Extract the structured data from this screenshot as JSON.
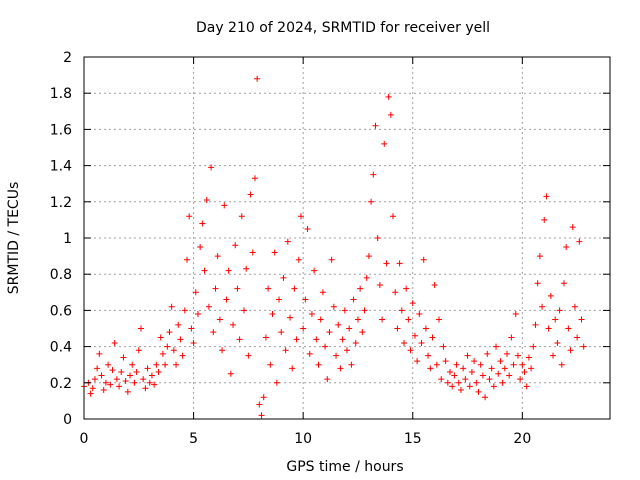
{
  "chart_data": {
    "type": "scatter",
    "title": "Day 210 of 2024, SRMTID for receiver yell",
    "xlabel": "GPS time / hours",
    "ylabel": "SRMTID / TECUs",
    "xlim": [
      0,
      24
    ],
    "ylim": [
      0,
      2
    ],
    "xticks": [
      0,
      5,
      10,
      15,
      20
    ],
    "xtick_labels": [
      "0",
      "5",
      "10",
      "15",
      "20"
    ],
    "yticks": [
      0,
      0.2,
      0.4,
      0.6,
      0.8,
      1,
      1.2,
      1.4,
      1.6,
      1.8,
      2
    ],
    "ytick_labels": [
      "0",
      "0.2",
      "0.4",
      "0.6",
      "0.8",
      "1",
      "1.2",
      "1.4",
      "1.6",
      "1.8",
      "2"
    ],
    "grid": true,
    "marker": "plus",
    "color": "#ff0000",
    "series": [
      {
        "name": "SRMTID",
        "points": [
          [
            0.0,
            0.18
          ],
          [
            0.2,
            0.2
          ],
          [
            0.3,
            0.14
          ],
          [
            0.4,
            0.17
          ],
          [
            0.5,
            0.22
          ],
          [
            0.6,
            0.28
          ],
          [
            0.7,
            0.36
          ],
          [
            0.8,
            0.24
          ],
          [
            0.9,
            0.16
          ],
          [
            1.0,
            0.2
          ],
          [
            1.1,
            0.3
          ],
          [
            1.2,
            0.19
          ],
          [
            1.3,
            0.27
          ],
          [
            1.4,
            0.42
          ],
          [
            1.5,
            0.22
          ],
          [
            1.6,
            0.18
          ],
          [
            1.7,
            0.26
          ],
          [
            1.8,
            0.34
          ],
          [
            1.9,
            0.21
          ],
          [
            2.0,
            0.15
          ],
          [
            2.1,
            0.24
          ],
          [
            2.2,
            0.3
          ],
          [
            2.3,
            0.2
          ],
          [
            2.4,
            0.26
          ],
          [
            2.5,
            0.38
          ],
          [
            2.6,
            0.5
          ],
          [
            2.7,
            0.22
          ],
          [
            2.8,
            0.17
          ],
          [
            2.9,
            0.28
          ],
          [
            3.0,
            0.2
          ],
          [
            3.1,
            0.24
          ],
          [
            3.2,
            0.19
          ],
          [
            3.3,
            0.3
          ],
          [
            3.4,
            0.26
          ],
          [
            3.5,
            0.45
          ],
          [
            3.6,
            0.36
          ],
          [
            3.7,
            0.3
          ],
          [
            3.8,
            0.4
          ],
          [
            3.9,
            0.48
          ],
          [
            4.0,
            0.62
          ],
          [
            4.1,
            0.38
          ],
          [
            4.2,
            0.3
          ],
          [
            4.3,
            0.52
          ],
          [
            4.4,
            0.44
          ],
          [
            4.5,
            0.35
          ],
          [
            4.6,
            0.6
          ],
          [
            4.7,
            0.88
          ],
          [
            4.8,
            1.12
          ],
          [
            4.9,
            0.5
          ],
          [
            5.0,
            0.42
          ],
          [
            5.1,
            0.7
          ],
          [
            5.2,
            0.58
          ],
          [
            5.3,
            0.95
          ],
          [
            5.4,
            1.08
          ],
          [
            5.5,
            0.82
          ],
          [
            5.6,
            1.21
          ],
          [
            5.7,
            0.62
          ],
          [
            5.8,
            1.39
          ],
          [
            5.9,
            0.48
          ],
          [
            6.0,
            0.72
          ],
          [
            6.1,
            0.9
          ],
          [
            6.2,
            0.55
          ],
          [
            6.3,
            0.38
          ],
          [
            6.4,
            1.18
          ],
          [
            6.5,
            0.66
          ],
          [
            6.6,
            0.82
          ],
          [
            6.7,
            0.25
          ],
          [
            6.8,
            0.52
          ],
          [
            6.9,
            0.96
          ],
          [
            7.0,
            0.72
          ],
          [
            7.1,
            0.44
          ],
          [
            7.2,
            1.12
          ],
          [
            7.3,
            0.6
          ],
          [
            7.4,
            0.83
          ],
          [
            7.5,
            0.35
          ],
          [
            7.6,
            1.24
          ],
          [
            7.7,
            0.92
          ],
          [
            7.8,
            1.33
          ],
          [
            7.9,
            1.88
          ],
          [
            8.0,
            0.08
          ],
          [
            8.1,
            0.02
          ],
          [
            8.2,
            0.12
          ],
          [
            8.3,
            0.45
          ],
          [
            8.4,
            0.72
          ],
          [
            8.5,
            0.3
          ],
          [
            8.6,
            0.58
          ],
          [
            8.7,
            0.92
          ],
          [
            8.8,
            0.2
          ],
          [
            8.9,
            0.66
          ],
          [
            9.0,
            0.48
          ],
          [
            9.1,
            0.78
          ],
          [
            9.2,
            0.38
          ],
          [
            9.3,
            0.98
          ],
          [
            9.4,
            0.56
          ],
          [
            9.5,
            0.28
          ],
          [
            9.6,
            0.72
          ],
          [
            9.7,
            0.44
          ],
          [
            9.8,
            0.88
          ],
          [
            9.9,
            1.12
          ],
          [
            10.0,
            0.5
          ],
          [
            10.1,
            0.66
          ],
          [
            10.2,
            1.05
          ],
          [
            10.3,
            0.36
          ],
          [
            10.4,
            0.58
          ],
          [
            10.5,
            0.82
          ],
          [
            10.6,
            0.44
          ],
          [
            10.7,
            0.3
          ],
          [
            10.8,
            0.55
          ],
          [
            10.9,
            0.7
          ],
          [
            11.0,
            0.4
          ],
          [
            11.1,
            0.22
          ],
          [
            11.2,
            0.48
          ],
          [
            11.3,
            0.88
          ],
          [
            11.4,
            0.62
          ],
          [
            11.5,
            0.35
          ],
          [
            11.6,
            0.52
          ],
          [
            11.7,
            0.28
          ],
          [
            11.8,
            0.44
          ],
          [
            11.9,
            0.6
          ],
          [
            12.0,
            0.38
          ],
          [
            12.1,
            0.5
          ],
          [
            12.2,
            0.3
          ],
          [
            12.3,
            0.66
          ],
          [
            12.4,
            0.42
          ],
          [
            12.5,
            0.55
          ],
          [
            12.6,
            0.72
          ],
          [
            12.7,
            0.48
          ],
          [
            12.8,
            0.6
          ],
          [
            12.9,
            0.78
          ],
          [
            13.0,
            0.9
          ],
          [
            13.1,
            1.2
          ],
          [
            13.2,
            1.35
          ],
          [
            13.3,
            1.62
          ],
          [
            13.4,
            1.0
          ],
          [
            13.5,
            0.74
          ],
          [
            13.6,
            0.55
          ],
          [
            13.7,
            1.52
          ],
          [
            13.8,
            0.86
          ],
          [
            13.9,
            1.78
          ],
          [
            14.0,
            1.68
          ],
          [
            14.1,
            1.12
          ],
          [
            14.2,
            0.7
          ],
          [
            14.3,
            0.5
          ],
          [
            14.4,
            0.86
          ],
          [
            14.5,
            0.6
          ],
          [
            14.6,
            0.42
          ],
          [
            14.7,
            0.72
          ],
          [
            14.8,
            0.55
          ],
          [
            14.9,
            0.38
          ],
          [
            15.0,
            0.64
          ],
          [
            15.1,
            0.46
          ],
          [
            15.2,
            0.32
          ],
          [
            15.3,
            0.58
          ],
          [
            15.4,
            0.42
          ],
          [
            15.5,
            0.88
          ],
          [
            15.6,
            0.5
          ],
          [
            15.7,
            0.35
          ],
          [
            15.8,
            0.28
          ],
          [
            15.9,
            0.45
          ],
          [
            16.0,
            0.74
          ],
          [
            16.1,
            0.3
          ],
          [
            16.2,
            0.55
          ],
          [
            16.3,
            0.22
          ],
          [
            16.4,
            0.4
          ],
          [
            16.5,
            0.32
          ],
          [
            16.6,
            0.2
          ],
          [
            16.7,
            0.26
          ],
          [
            16.8,
            0.18
          ],
          [
            16.9,
            0.24
          ],
          [
            17.0,
            0.3
          ],
          [
            17.1,
            0.2
          ],
          [
            17.2,
            0.16
          ],
          [
            17.3,
            0.28
          ],
          [
            17.4,
            0.22
          ],
          [
            17.5,
            0.35
          ],
          [
            17.6,
            0.18
          ],
          [
            17.7,
            0.26
          ],
          [
            17.8,
            0.32
          ],
          [
            17.9,
            0.2
          ],
          [
            18.0,
            0.15
          ],
          [
            18.1,
            0.3
          ],
          [
            18.2,
            0.24
          ],
          [
            18.3,
            0.12
          ],
          [
            18.4,
            0.36
          ],
          [
            18.5,
            0.22
          ],
          [
            18.6,
            0.28
          ],
          [
            18.7,
            0.18
          ],
          [
            18.8,
            0.4
          ],
          [
            18.9,
            0.25
          ],
          [
            19.0,
            0.32
          ],
          [
            19.1,
            0.2
          ],
          [
            19.2,
            0.28
          ],
          [
            19.3,
            0.36
          ],
          [
            19.4,
            0.24
          ],
          [
            19.5,
            0.45
          ],
          [
            19.6,
            0.3
          ],
          [
            19.7,
            0.58
          ],
          [
            19.8,
            0.35
          ],
          [
            19.9,
            0.22
          ],
          [
            20.0,
            0.3
          ],
          [
            20.1,
            0.26
          ],
          [
            20.2,
            0.18
          ],
          [
            20.3,
            0.34
          ],
          [
            20.4,
            0.28
          ],
          [
            20.5,
            0.4
          ],
          [
            20.6,
            0.52
          ],
          [
            20.7,
            0.75
          ],
          [
            20.8,
            0.9
          ],
          [
            20.9,
            0.62
          ],
          [
            21.0,
            1.1
          ],
          [
            21.1,
            1.23
          ],
          [
            21.2,
            0.5
          ],
          [
            21.3,
            0.68
          ],
          [
            21.4,
            0.35
          ],
          [
            21.5,
            0.55
          ],
          [
            21.6,
            0.42
          ],
          [
            21.7,
            0.6
          ],
          [
            21.8,
            0.3
          ],
          [
            21.9,
            0.75
          ],
          [
            22.0,
            0.95
          ],
          [
            22.1,
            0.5
          ],
          [
            22.2,
            0.38
          ],
          [
            22.3,
            1.06
          ],
          [
            22.4,
            0.62
          ],
          [
            22.5,
            0.45
          ],
          [
            22.6,
            0.98
          ],
          [
            22.7,
            0.55
          ],
          [
            22.8,
            0.4
          ]
        ]
      }
    ]
  }
}
